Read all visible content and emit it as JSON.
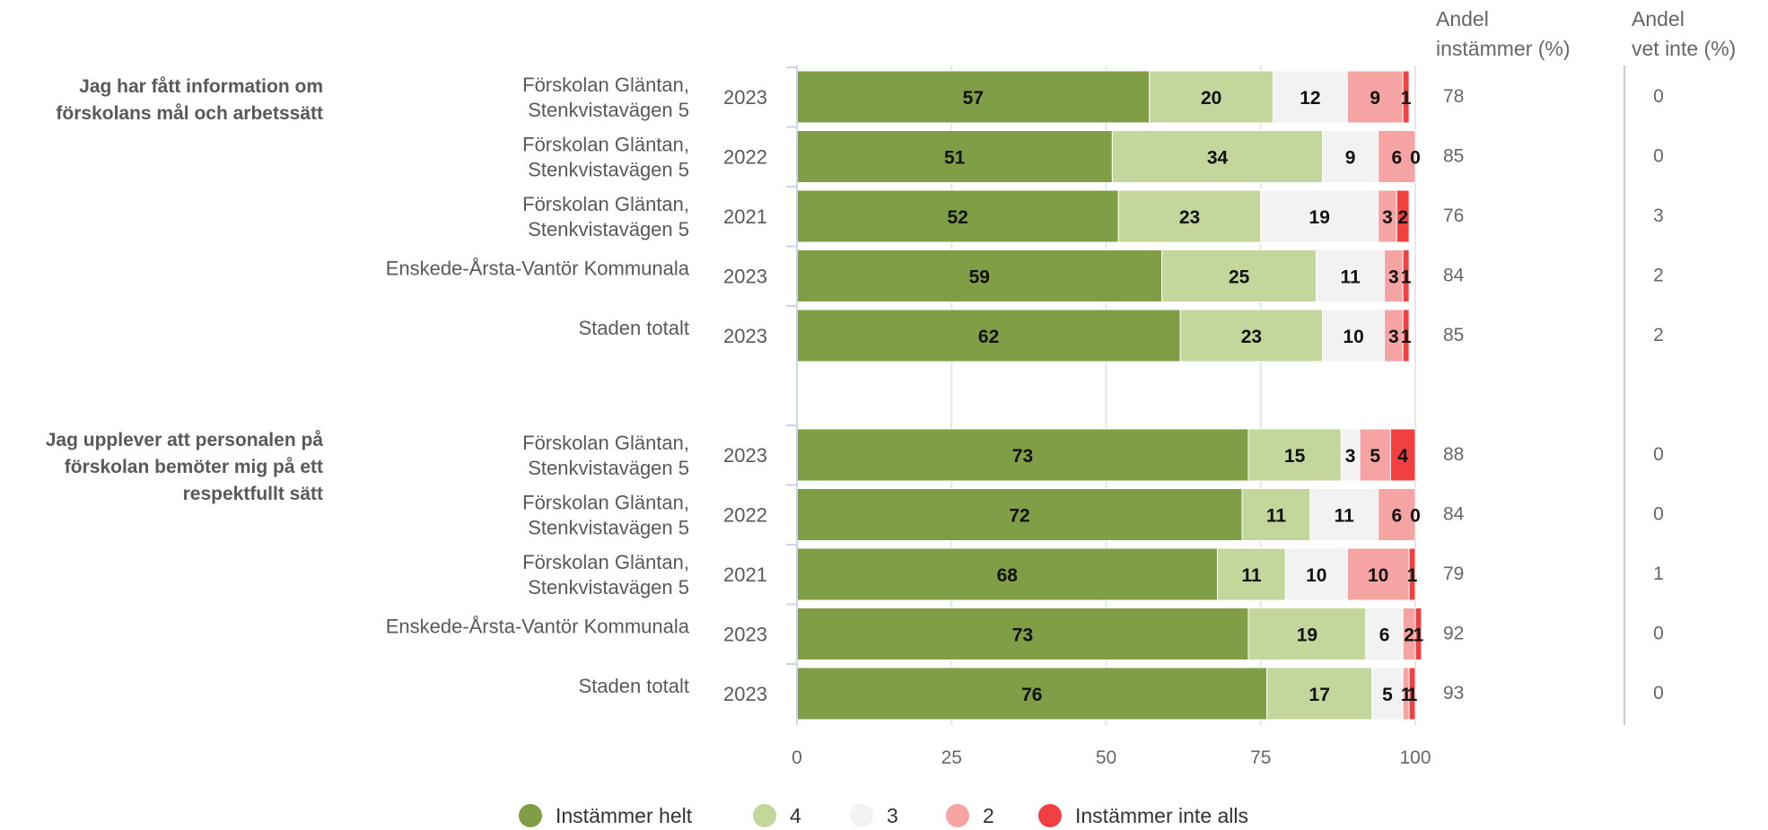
{
  "chart_data": {
    "type": "bar",
    "orientation": "horizontal-stacked",
    "xlim": [
      0,
      100
    ],
    "xticks": [
      "0",
      "25",
      "50",
      "75",
      "100"
    ],
    "grid": true,
    "legend_position": "bottom",
    "columns": {
      "agree_line1": "Andel",
      "agree_line2": "instämmer (%)",
      "dontknow_line1": "Andel",
      "dontknow_line2": "vet inte (%)"
    },
    "series": [
      {
        "name": "Instämmer helt",
        "color": "#7f9e45"
      },
      {
        "name": "4",
        "color": "#c3d69b"
      },
      {
        "name": "3",
        "color": "#f2f2f2"
      },
      {
        "name": "2",
        "color": "#f6a3a3"
      },
      {
        "name": "Instämmer inte alls",
        "color": "#f04040"
      }
    ],
    "groups": [
      {
        "question": [
          "Jag har fått information om",
          "förskolans mål och arbetssätt"
        ],
        "rows": [
          {
            "label": [
              "Förskolan Gläntan,",
              "Stenkvistavägen 5"
            ],
            "year": "2023",
            "values": [
              57,
              20,
              12,
              9,
              1
            ],
            "agree": "78",
            "dont_know": "0"
          },
          {
            "label": [
              "Förskolan Gläntan,",
              "Stenkvistavägen 5"
            ],
            "year": "2022",
            "values": [
              51,
              34,
              9,
              6,
              0
            ],
            "agree": "85",
            "dont_know": "0"
          },
          {
            "label": [
              "Förskolan Gläntan,",
              "Stenkvistavägen 5"
            ],
            "year": "2021",
            "values": [
              52,
              23,
              19,
              3,
              2
            ],
            "agree": "76",
            "dont_know": "3"
          },
          {
            "label": [
              "Enskede-Årsta-Vantör Kommunala"
            ],
            "year": "2023",
            "values": [
              59,
              25,
              11,
              3,
              1
            ],
            "agree": "84",
            "dont_know": "2"
          },
          {
            "label": [
              "Staden totalt"
            ],
            "year": "2023",
            "values": [
              62,
              23,
              10,
              3,
              1
            ],
            "agree": "85",
            "dont_know": "2"
          }
        ]
      },
      {
        "question": [
          "Jag upplever att personalen på",
          "förskolan bemöter mig på ett",
          "respektfullt sätt"
        ],
        "rows": [
          {
            "label": [
              "Förskolan Gläntan,",
              "Stenkvistavägen 5"
            ],
            "year": "2023",
            "values": [
              73,
              15,
              3,
              5,
              4
            ],
            "agree": "88",
            "dont_know": "0"
          },
          {
            "label": [
              "Förskolan Gläntan,",
              "Stenkvistavägen 5"
            ],
            "year": "2022",
            "values": [
              72,
              11,
              11,
              6,
              0
            ],
            "agree": "84",
            "dont_know": "0"
          },
          {
            "label": [
              "Förskolan Gläntan,",
              "Stenkvistavägen 5"
            ],
            "year": "2021",
            "values": [
              68,
              11,
              10,
              10,
              1
            ],
            "agree": "79",
            "dont_know": "1"
          },
          {
            "label": [
              "Enskede-Årsta-Vantör Kommunala"
            ],
            "year": "2023",
            "values": [
              73,
              19,
              6,
              2,
              1
            ],
            "agree": "92",
            "dont_know": "0"
          },
          {
            "label": [
              "Staden totalt"
            ],
            "year": "2023",
            "values": [
              76,
              17,
              5,
              1,
              1
            ],
            "agree": "93",
            "dont_know": "0"
          }
        ]
      }
    ]
  }
}
